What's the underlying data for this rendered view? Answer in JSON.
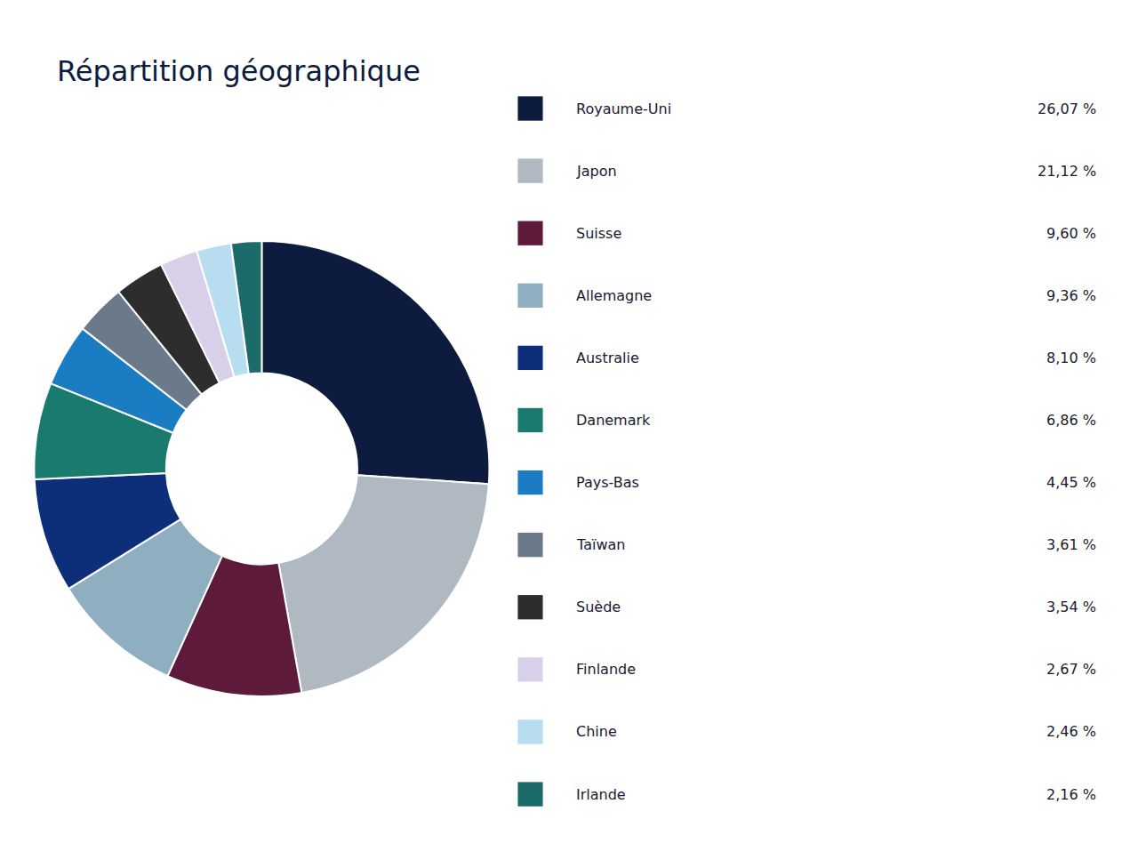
{
  "chart_data": {
    "type": "donut",
    "title": "Répartition géographique",
    "categories": [
      "Royaume-Uni",
      "Japon",
      "Suisse",
      "Allemagne",
      "Australie",
      "Danemark",
      "Pays-Bas",
      "Taïwan",
      "Suède",
      "Finlande",
      "Chine",
      "Irlande"
    ],
    "values": [
      26.07,
      21.12,
      9.6,
      9.36,
      8.1,
      6.86,
      4.45,
      3.61,
      3.54,
      2.67,
      2.46,
      2.16
    ],
    "value_labels": [
      "26,07 %",
      "21,12 %",
      "9,60 %",
      "9,36 %",
      "8,10 %",
      "6,86 %",
      "4,45 %",
      "3,61 %",
      "3,54 %",
      "2,67 %",
      "2,46 %",
      "2,16 %"
    ],
    "colors": [
      "#0d1b3e",
      "#b0b8c1",
      "#5e1a3a",
      "#8fafc0",
      "#0d2f7a",
      "#1a7a6e",
      "#1a7dc4",
      "#6b7a8a",
      "#2d2d2d",
      "#d8d0e8",
      "#b8ddf0",
      "#1a6b6a"
    ],
    "legend": "right"
  }
}
